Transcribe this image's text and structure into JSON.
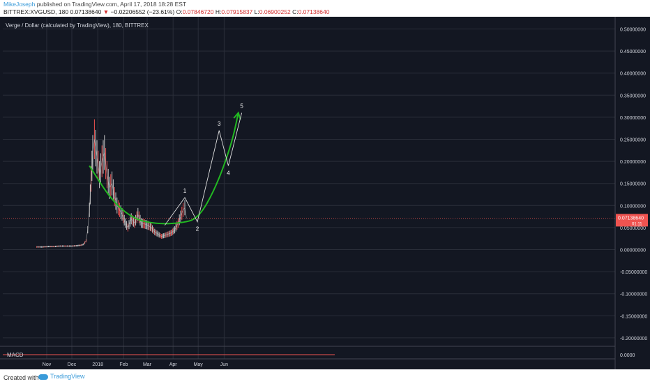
{
  "header": {
    "author": "MikeJoseph",
    "published_text": "published on TradingView.com, April 17, 2018 18:28 EST",
    "symbol_text": "BITTREX:XVGUSD, 180",
    "close_value": "0.07138640",
    "change_text": "−0.02206552 (−23.61%)",
    "open_label": "O:",
    "open_value": "0.07846720",
    "high_label": "H:",
    "high_value": "0.07915837",
    "low_label": "L:",
    "low_value": "0.06900252",
    "close_label": "C:",
    "close_value2": "0.07138640"
  },
  "chart_title": "Verge / Dollar (calculated by TradingView), 180, BITTREX",
  "macd_label": "MACD",
  "footer": {
    "created_with": "Created with",
    "brand": "TradingView"
  },
  "colors": {
    "background": "#131722",
    "grid": "#2a2e39",
    "candle_up": "#c9c9c9",
    "candle_down": "#ef5350",
    "curve": "#22b822",
    "wave": "#e0e0e0",
    "price_badge": "#ef5350",
    "price_line": "#ef5350"
  },
  "chart_data": {
    "type": "line",
    "title": "Verge / Dollar (calculated by TradingView), 180, BITTREX",
    "xlabel": "",
    "ylabel": "",
    "ylim": [
      -0.24,
      0.52
    ],
    "x_ticks": [
      "Nov",
      "Dec",
      "2018",
      "Feb",
      "Mar",
      "Apr",
      "May",
      "Jun"
    ],
    "y_ticks": [
      "0.50000000",
      "0.45000000",
      "0.40000000",
      "0.35000000",
      "0.30000000",
      "0.25000000",
      "0.20000000",
      "0.15000000",
      "0.10000000",
      "0.05000000",
      "0.00000000",
      "-0.05000000",
      "-0.10000000",
      "-0.15000000",
      "-0.20000000"
    ],
    "current_price": "0.07138640",
    "current_price_value": 0.0713864,
    "badge_sub": "01:11",
    "macd_tick": "0.0000",
    "grid": true,
    "series": [
      {
        "name": "XVGUSD",
        "x": [
          "Oct 20",
          "Oct 27",
          "Nov 3",
          "Nov 10",
          "Nov 17",
          "Nov 24",
          "Dec 1",
          "Dec 8",
          "Dec 12",
          "Dec 15",
          "Dec 18",
          "Dec 20",
          "Dec 22",
          "Dec 24",
          "Dec 26",
          "Dec 28",
          "Dec 31",
          "Jan 3",
          "Jan 6",
          "Jan 9",
          "Jan 12",
          "Jan 15",
          "Jan 18",
          "Jan 21",
          "Jan 24",
          "Jan 27",
          "Jan 30",
          "Feb 3",
          "Feb 6",
          "Feb 10",
          "Feb 14",
          "Feb 18",
          "Feb 22",
          "Feb 26",
          "Mar 2",
          "Mar 6",
          "Mar 10",
          "Mar 14",
          "Mar 18",
          "Mar 22",
          "Mar 26",
          "Mar 30",
          "Apr 3",
          "Apr 7",
          "Apr 10",
          "Apr 13",
          "Apr 15",
          "Apr 17"
        ],
        "values": [
          0.006,
          0.006,
          0.007,
          0.007,
          0.008,
          0.008,
          0.008,
          0.009,
          0.01,
          0.012,
          0.02,
          0.045,
          0.09,
          0.16,
          0.22,
          0.25,
          0.21,
          0.17,
          0.2,
          0.22,
          0.17,
          0.14,
          0.15,
          0.12,
          0.1,
          0.09,
          0.08,
          0.06,
          0.05,
          0.07,
          0.06,
          0.08,
          0.06,
          0.058,
          0.055,
          0.05,
          0.04,
          0.035,
          0.03,
          0.032,
          0.035,
          0.038,
          0.045,
          0.06,
          0.075,
          0.09,
          0.095,
          0.071
        ]
      }
    ],
    "annotations": [
      {
        "type": "curve",
        "description": "green cup arc with arrow",
        "points": [
          [
            "Dec 22",
            0.19
          ],
          [
            "Jan 18",
            0.11
          ],
          [
            "Feb 14",
            0.068
          ],
          [
            "Mar 14",
            0.058
          ],
          [
            "Apr 10",
            0.06
          ],
          [
            "May 1",
            0.07
          ],
          [
            "May 22",
            0.14
          ],
          [
            "Jun 10",
            0.24
          ],
          [
            "Jun 18",
            0.31
          ]
        ]
      },
      {
        "type": "wave",
        "labels": [
          "1",
          "2",
          "3",
          "4",
          "5"
        ],
        "points": [
          [
            "Mar 22",
            0.055
          ],
          [
            "Apr 15",
            0.118
          ],
          [
            "Apr 30",
            0.063
          ],
          [
            "May 26",
            0.27
          ],
          [
            "Jun 6",
            0.19
          ],
          [
            "Jun 22",
            0.31
          ]
        ]
      }
    ]
  }
}
